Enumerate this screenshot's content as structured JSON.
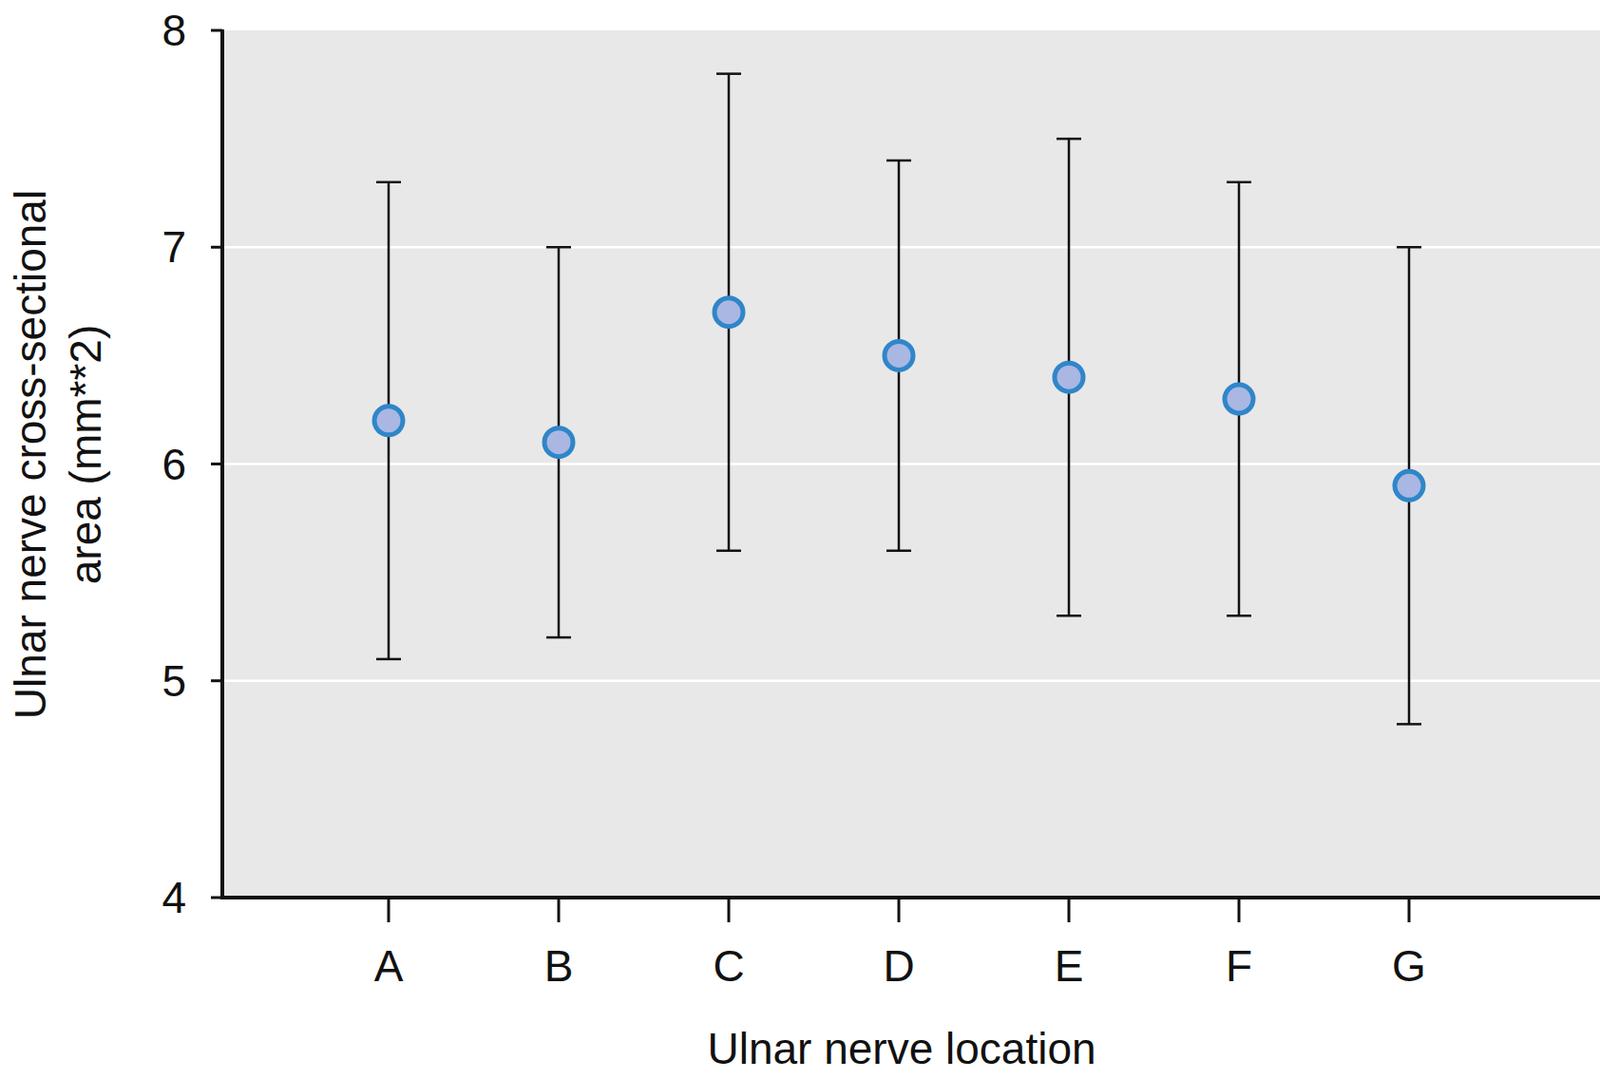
{
  "chart_data": {
    "type": "errorbar",
    "x_label": "Ulnar nerve location",
    "y_label": "Ulnar nerve cross-sectional area (mm**2)",
    "categories": [
      "A",
      "B",
      "C",
      "D",
      "E",
      "F",
      "G"
    ],
    "values": [
      6.2,
      6.1,
      6.7,
      6.5,
      6.4,
      6.3,
      5.9
    ],
    "errors": [
      1.1,
      0.9,
      1.1,
      0.9,
      1.1,
      1.0,
      1.1
    ],
    "color": "#2f86c9",
    "marker": "circle",
    "ylim": [
      4,
      8
    ],
    "yticks": [
      4,
      5,
      6,
      7,
      8
    ],
    "grid": true
  }
}
